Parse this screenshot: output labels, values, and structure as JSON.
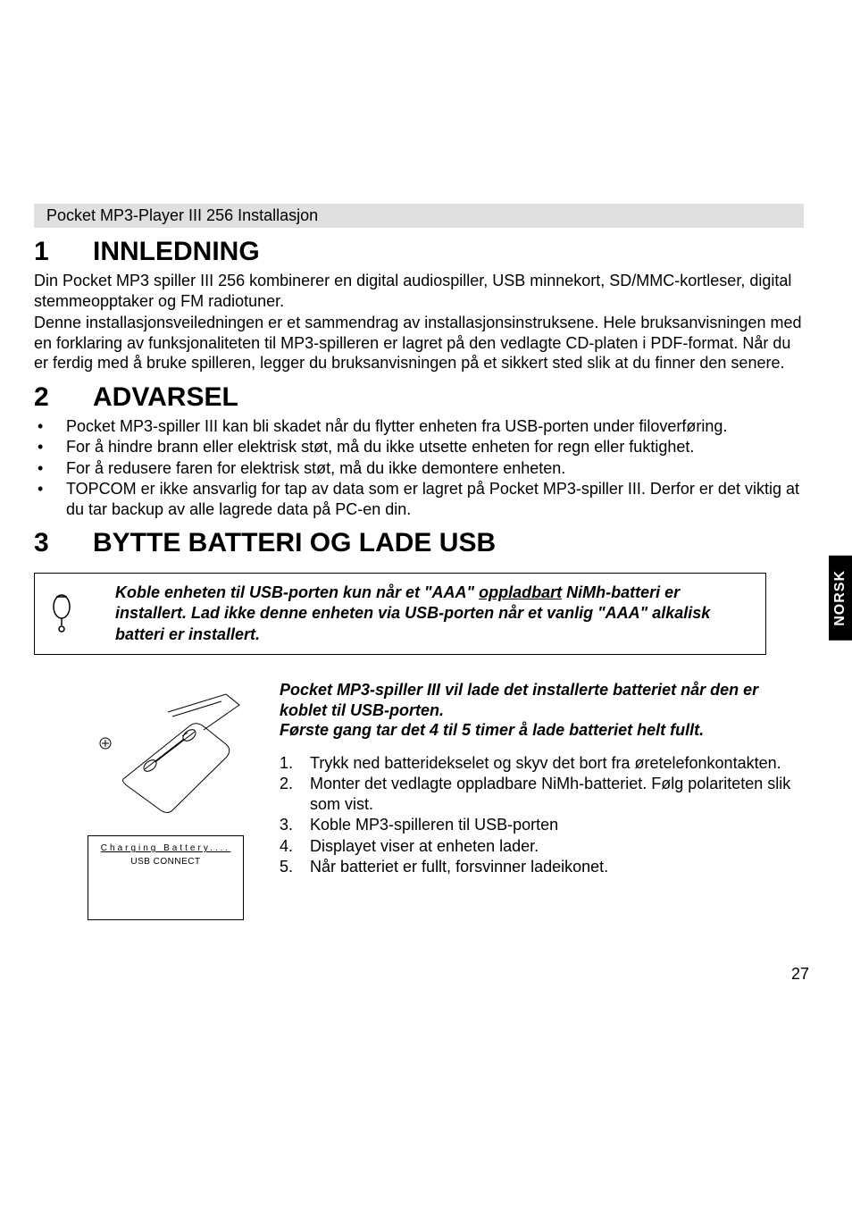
{
  "title_bar": "Pocket MP3-Player III 256 Installasjon",
  "side_tab": "NORSK",
  "page_number": "27",
  "section1": {
    "num": "1",
    "title": "INNLEDNING",
    "p1": "Din Pocket MP3 spiller III 256 kombinerer en digital audiospiller, USB minnekort, SD/MMC-kortleser, digital stemmeopptaker og FM radiotuner.",
    "p2": "Denne installasjonsveiledningen er et sammendrag av installasjonsinstruksene. Hele bruksanvisningen med en forklaring av funksjonaliteten til MP3-spilleren er lagret på den vedlagte CD-platen i PDF-format. Når du er ferdig med å bruke spilleren, legger du bruksanvisningen på et sikkert sted slik at du finner den senere."
  },
  "section2": {
    "num": "2",
    "title": "ADVARSEL",
    "bullets": [
      "Pocket MP3-spiller III kan bli skadet når du flytter enheten fra USB-porten under filoverføring.",
      "For å hindre brann eller elektrisk støt, må du ikke utsette enheten for regn eller fuktighet.",
      "For å redusere faren for elektrisk støt, må du ikke demontere enheten.",
      "TOPCOM er ikke ansvarlig for tap av data som er lagret på Pocket MP3-spiller III. Derfor er det viktig at du tar backup av alle lagrede data på PC-en din."
    ]
  },
  "section3": {
    "num": "3",
    "title": "BYTTE BATTERI OG LADE USB",
    "warning_pre": "Koble enheten til USB-porten kun når et \"AAA\" ",
    "warning_underlined": "oppladbart",
    "warning_post": " NiMh-batteri er installert. Lad ikke denne enheten via USB-porten når et vanlig \"AAA\" alkalisk batteri er installert.",
    "intro": "Pocket MP3-spiller III vil lade det installerte batteriet når den er koblet til USB-porten.\nFørste gang tar det 4 til 5 timer å lade batteriet helt fullt.",
    "lcd_line1": "Charging Battery....",
    "lcd_line2": "USB CONNECT",
    "steps": [
      "Trykk ned batteridekselet og skyv det bort fra øretelefonkontakten.",
      "Monter det vedlagte oppladbare NiMh-batteriet. Følg polariteten slik som vist.",
      "Koble MP3-spilleren til USB-porten",
      "Displayet viser at enheten lader.",
      "Når batteriet er fullt, forsvinner ladeikonet."
    ]
  }
}
